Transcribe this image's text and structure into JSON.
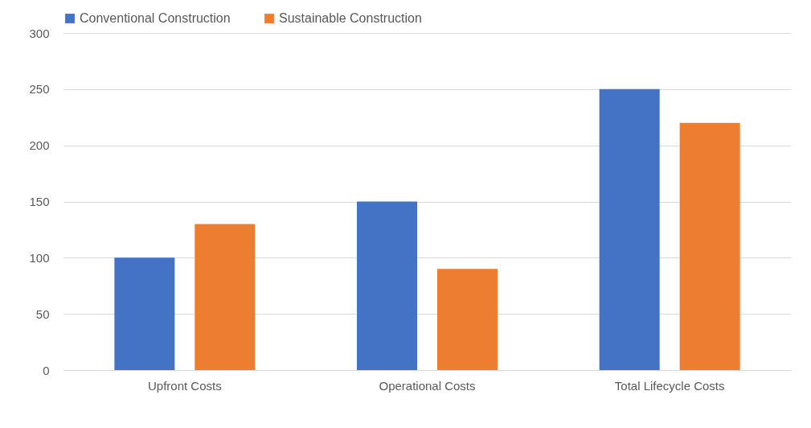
{
  "chart_data": {
    "type": "bar",
    "categories": [
      "Upfront Costs",
      "Operational Costs",
      "Total Lifecycle Costs"
    ],
    "series": [
      {
        "name": "Conventional Construction",
        "color": "#4472c4",
        "values": [
          100,
          150,
          250
        ]
      },
      {
        "name": "Sustainable Construction",
        "color": "#ed7d31",
        "values": [
          130,
          90,
          220
        ]
      }
    ],
    "ylim": [
      0,
      300
    ],
    "yticks": [
      0,
      50,
      100,
      150,
      200,
      250,
      300
    ],
    "grid": "y",
    "legend": "top"
  }
}
